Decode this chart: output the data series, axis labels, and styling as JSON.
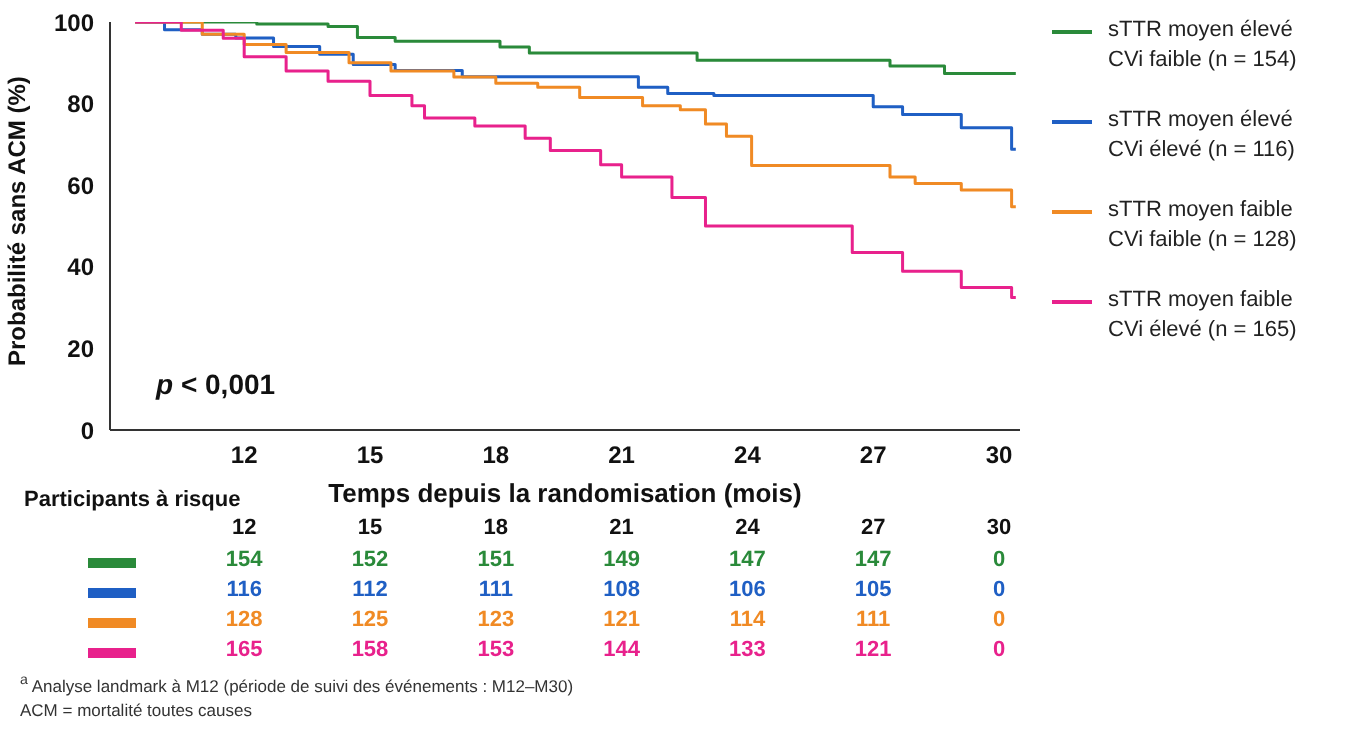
{
  "chart_data": {
    "type": "step",
    "xlabel": "Temps depuis la randomisation (mois)",
    "ylabel": "Probabilité sans ACM (%)",
    "xlim": [
      8.8,
      30.5
    ],
    "xticks": [
      12,
      15,
      18,
      21,
      24,
      27,
      30
    ],
    "ylim": [
      0,
      100
    ],
    "yticks": [
      0,
      20,
      40,
      60,
      80,
      100
    ],
    "legend": "right",
    "series": [
      {
        "name": "sTTR moyen élevé CVi faible (n = 154)",
        "color": "#2a8a3a",
        "x": [
          9.4,
          12.3,
          14,
          14.7,
          15.6,
          18.1,
          18.8,
          22.8,
          27.4,
          28.7,
          30.4
        ],
        "values": [
          100,
          99.5,
          98.9,
          96.2,
          95.3,
          93.9,
          92.4,
          90.6,
          89.2,
          87.4,
          87.4
        ]
      },
      {
        "name": "sTTR moyen élevé CVi élevé (n = 116)",
        "color": "#1f5fc4",
        "x": [
          9.4,
          10.1,
          11,
          11.8,
          12.7,
          13.8,
          14.6,
          15.6,
          17.2,
          21.4,
          22.1,
          23.2,
          27,
          27.7,
          29.1,
          30.3,
          30.4
        ],
        "values": [
          100,
          98.1,
          97,
          96.1,
          94,
          92.1,
          89.6,
          88.1,
          86.6,
          84,
          82.5,
          82,
          79.2,
          77.3,
          74.1,
          68.8,
          68.8
        ]
      },
      {
        "name": "sTTR moyen faible CVi faible (n = 128)",
        "color": "#f08a24",
        "x": [
          9.4,
          11,
          12,
          13,
          14.5,
          15.5,
          17,
          18,
          19,
          20,
          21.5,
          22.4,
          23,
          23.5,
          24.1,
          27.4,
          28,
          29.1,
          30.3,
          30.4
        ],
        "values": [
          100,
          97,
          94.5,
          92.5,
          90,
          88,
          86.5,
          85,
          84,
          81.5,
          79.5,
          78.5,
          75,
          72,
          64.8,
          62,
          60.4,
          58.8,
          54.7,
          54.7
        ]
      },
      {
        "name": "sTTR moyen faible CVi élevé (n = 165)",
        "color": "#e8218c",
        "x": [
          9.4,
          10.5,
          11.5,
          12,
          13,
          14,
          15,
          16,
          16.3,
          17.5,
          18.7,
          19.3,
          20.5,
          21,
          22.2,
          23,
          25.2,
          26.5,
          27.7,
          29.1,
          30.3,
          30.4
        ],
        "values": [
          100,
          98,
          96,
          91.5,
          88,
          85.5,
          82,
          79.5,
          76.5,
          74.5,
          71.5,
          68.5,
          65,
          62,
          57,
          50,
          50,
          43.5,
          38.9,
          34.9,
          32.5,
          32.5
        ]
      }
    ],
    "annotations": [
      "p < 0,001",
      "Participants à risque",
      "12 15 18 21 24 27 30",
      "154 152 151 149 147 147 0",
      "116 112 111 108 106 105 0",
      "128 125 123 121 114 111 0",
      "165 158 153 144 133 121 0",
      "$^{a}$ Analyse landmark à M12 (période de suivi des événements : M12–M30)",
      "ACM = mortalité toutes causes"
    ]
  }
}
